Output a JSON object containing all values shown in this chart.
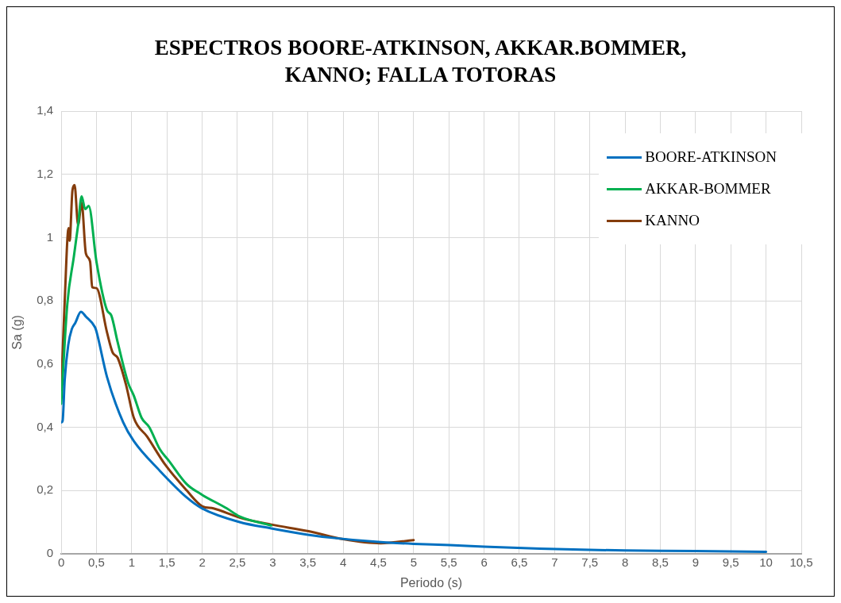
{
  "chart_data": {
    "type": "line",
    "title": "ESPECTROS BOORE-ATKINSON, AKKAR.BOMMER, KANNO; FALLA TOTORAS",
    "xlabel": "Periodo (s)",
    "ylabel": "Sa (g)",
    "xlim": [
      0,
      10.5
    ],
    "ylim": [
      0,
      1.4
    ],
    "xticks": [
      0,
      {
        "value": 0.5,
        "label": "0,5"
      },
      1,
      {
        "value": 1.5,
        "label": "1,5"
      },
      2,
      {
        "value": 2.5,
        "label": "2,5"
      },
      3,
      {
        "value": 3.5,
        "label": "3,5"
      },
      4,
      {
        "value": 4.5,
        "label": "4,5"
      },
      5,
      {
        "value": 5.5,
        "label": "5,5"
      },
      6,
      {
        "value": 6.5,
        "label": "6,5"
      },
      7,
      {
        "value": 7.5,
        "label": "7,5"
      },
      8,
      {
        "value": 8.5,
        "label": "8,5"
      },
      9,
      {
        "value": 9.5,
        "label": "9,5"
      },
      10,
      {
        "value": 10.5,
        "label": "10,5"
      }
    ],
    "yticks": [
      0,
      {
        "value": 0.2,
        "label": "0,2"
      },
      {
        "value": 0.4,
        "label": "0,4"
      },
      {
        "value": 0.6,
        "label": "0,6"
      },
      {
        "value": 0.8,
        "label": "0,8"
      },
      1,
      {
        "value": 1.2,
        "label": "1,2"
      },
      {
        "value": 1.4,
        "label": "1,4"
      }
    ],
    "grid": true,
    "legend": "top right",
    "marker": "none",
    "line_style": "solid",
    "series": [
      {
        "name": "BOORE-ATKINSON",
        "color": "#0070c0",
        "x": [
          0,
          0.02,
          0.05,
          0.1,
          0.15,
          0.2,
          0.28,
          0.35,
          0.48,
          0.5,
          0.65,
          0.88,
          1.03,
          1.4,
          1.78,
          2.0,
          2.53,
          2.98,
          3.5,
          3.85,
          4.5,
          5.0,
          5.51,
          6.0,
          6.79,
          7.5,
          8.0,
          9.0,
          10.0
        ],
        "values": [
          0.415,
          0.42,
          0.55,
          0.66,
          0.71,
          0.73,
          0.765,
          0.75,
          0.716,
          0.703,
          0.559,
          0.415,
          0.356,
          0.262,
          0.178,
          0.143,
          0.1,
          0.08,
          0.06,
          0.05,
          0.037,
          0.031,
          0.027,
          0.022,
          0.016,
          0.012,
          0.01,
          0.008,
          0.006
        ]
      },
      {
        "name": "AKKAR-BOMMER",
        "color": "#00b050",
        "x": [
          0,
          0.087,
          0.18,
          0.24,
          0.29,
          0.34,
          0.39,
          0.5,
          0.65,
          0.71,
          0.8,
          0.95,
          1.03,
          1.14,
          1.25,
          1.4,
          1.52,
          1.78,
          1.97,
          2.35,
          2.53,
          2.98
        ],
        "values": [
          0.474,
          0.79,
          0.94,
          1.04,
          1.13,
          1.09,
          1.1,
          0.924,
          0.77,
          0.754,
          0.67,
          0.54,
          0.5,
          0.43,
          0.4,
          0.33,
          0.296,
          0.22,
          0.19,
          0.143,
          0.118,
          0.089
        ]
      },
      {
        "name": "KANNO",
        "color": "#843c0c",
        "x": [
          0,
          0.05,
          0.105,
          0.12,
          0.16,
          0.19,
          0.24,
          0.29,
          0.35,
          0.41,
          0.44,
          0.5,
          0.65,
          0.73,
          0.8,
          0.92,
          1.03,
          1.22,
          1.48,
          1.78,
          2.0,
          2.16,
          2.53,
          2.98,
          3.51,
          4.0,
          4.53,
          5.0
        ],
        "values": [
          0.517,
          0.8,
          1.03,
          0.99,
          1.15,
          1.166,
          1.04,
          1.11,
          0.95,
          0.924,
          0.843,
          0.84,
          0.7,
          0.636,
          0.62,
          0.534,
          0.43,
          0.37,
          0.28,
          0.2,
          0.15,
          0.143,
          0.114,
          0.092,
          0.071,
          0.046,
          0.033,
          0.043
        ]
      }
    ]
  }
}
